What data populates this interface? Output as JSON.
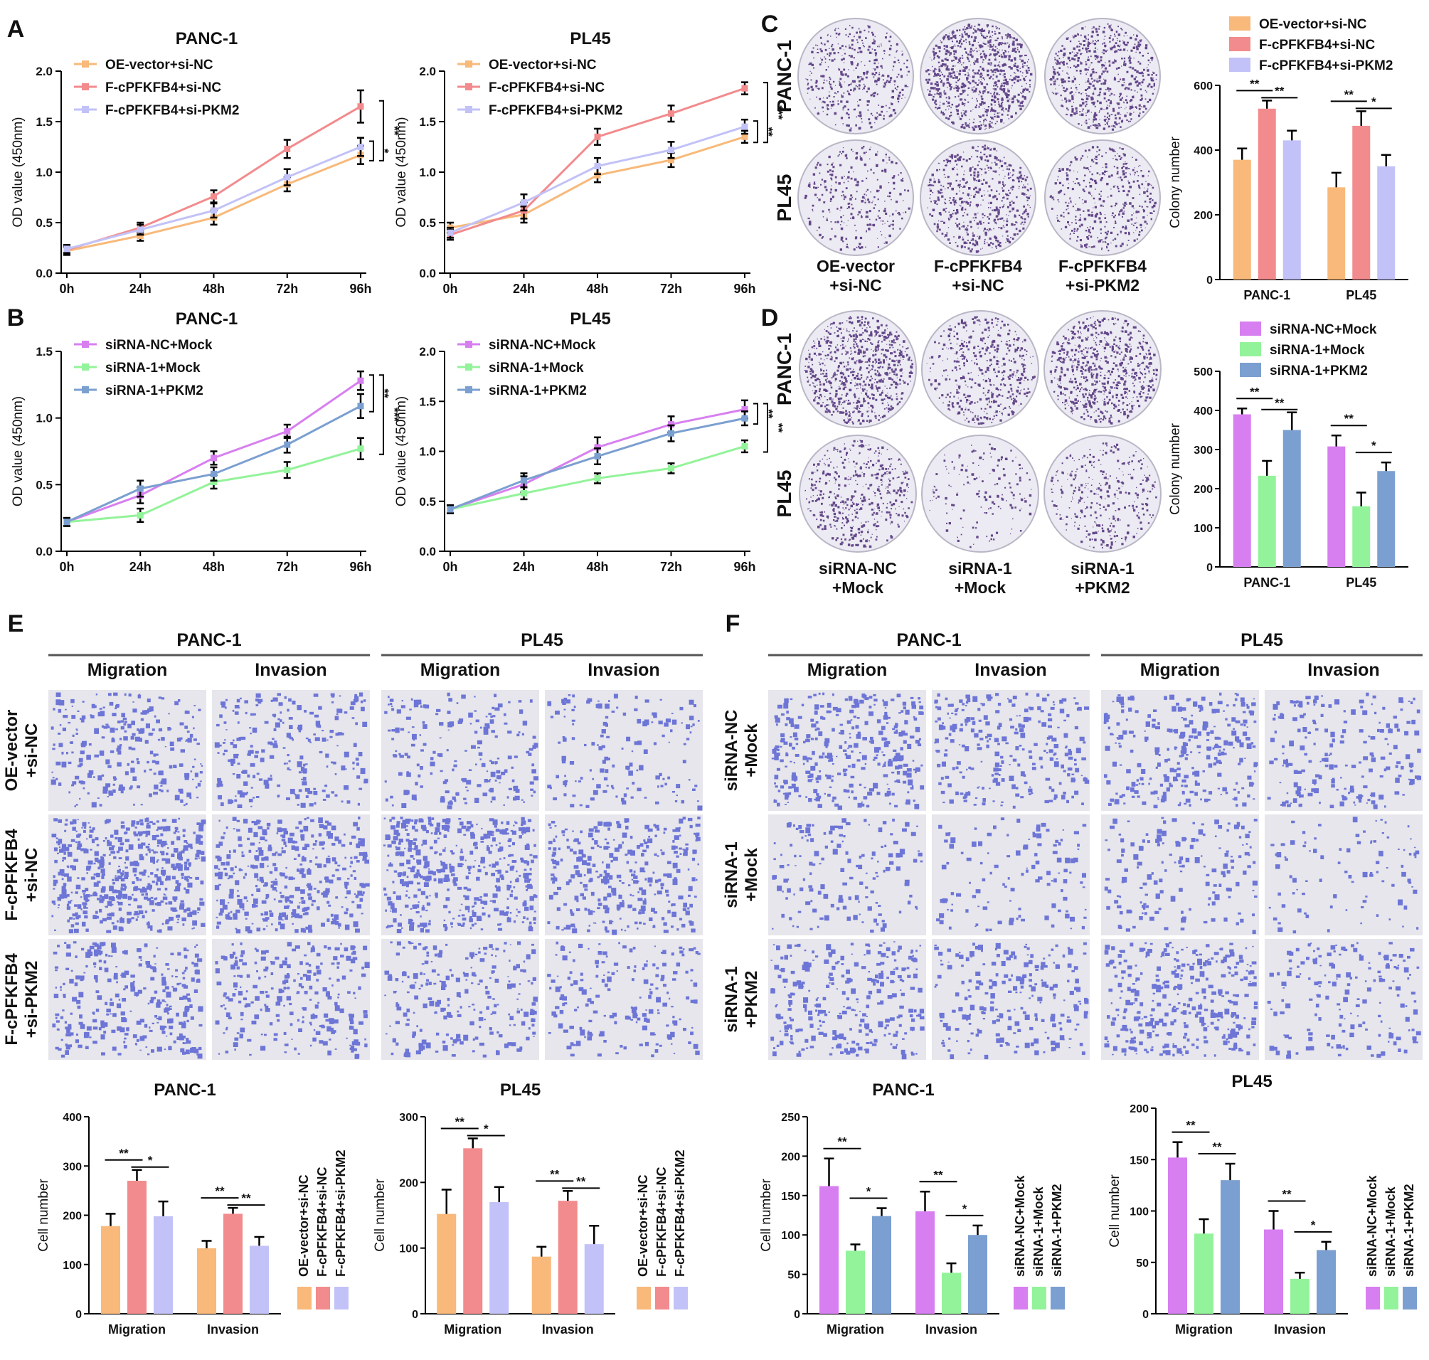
{
  "panel_labels": [
    "A",
    "B",
    "C",
    "D",
    "E",
    "F"
  ],
  "colors": {
    "oe_vector": "#f8b97a",
    "f_cpfkfb4": "#f28b8d",
    "f_sipkm2": "#c2c2f8",
    "nc_mock": "#d77ff0",
    "si1_mock": "#93f39a",
    "si1_pkm2": "#7b9fd0",
    "colony_dot": "#4b2a78",
    "colony_bg": "#eceaf2",
    "cell_dot": "#4a55cf",
    "cell_bg": "#e6e6ec"
  },
  "chart_data": [
    {
      "id": "A1",
      "type": "line",
      "title": "PANC-1",
      "x": [
        "0h",
        "24h",
        "48h",
        "72h",
        "96h"
      ],
      "ylabel": "OD value (450nm)",
      "ylim": [
        0,
        2.0
      ],
      "yticks": [
        "0.0",
        "0.5",
        "1.0",
        "1.5",
        "2.0"
      ],
      "series": [
        {
          "name": "OE-vector+si-NC",
          "color": "#f8b97a",
          "values": [
            0.22,
            0.37,
            0.55,
            0.88,
            1.17
          ],
          "errors": [
            0.04,
            0.05,
            0.07,
            0.07,
            0.09
          ]
        },
        {
          "name": "F-cPFKFB4+si-NC",
          "color": "#f28b8d",
          "values": [
            0.23,
            0.45,
            0.76,
            1.23,
            1.65
          ],
          "errors": [
            0.04,
            0.05,
            0.06,
            0.09,
            0.16
          ]
        },
        {
          "name": "F-cPFKFB4+si-PKM2",
          "color": "#c2c2f8",
          "values": [
            0.24,
            0.43,
            0.62,
            0.95,
            1.25
          ],
          "errors": [
            0.04,
            0.05,
            0.07,
            0.08,
            0.09
          ]
        }
      ],
      "significance": [
        "*",
        "**"
      ]
    },
    {
      "id": "A2",
      "type": "line",
      "title": "PL45",
      "x": [
        "0h",
        "24h",
        "48h",
        "72h",
        "96h"
      ],
      "ylabel": "OD value (450nm)",
      "ylim": [
        0,
        2.0
      ],
      "yticks": [
        "0.0",
        "0.5",
        "1.0",
        "1.5",
        "2.0"
      ],
      "series": [
        {
          "name": "OE-vector+si-NC",
          "color": "#f8b97a",
          "values": [
            0.45,
            0.58,
            0.97,
            1.12,
            1.35
          ],
          "errors": [
            0.05,
            0.08,
            0.07,
            0.07,
            0.06
          ]
        },
        {
          "name": "F-cPFKFB4+si-NC",
          "color": "#f28b8d",
          "values": [
            0.38,
            0.62,
            1.35,
            1.58,
            1.83
          ],
          "errors": [
            0.05,
            0.08,
            0.08,
            0.08,
            0.06
          ]
        },
        {
          "name": "F-cPFKFB4+si-PKM2",
          "color": "#c2c2f8",
          "values": [
            0.4,
            0.7,
            1.06,
            1.22,
            1.45
          ],
          "errors": [
            0.05,
            0.08,
            0.08,
            0.08,
            0.07
          ]
        }
      ],
      "significance": [
        "**",
        "***"
      ]
    },
    {
      "id": "B1",
      "type": "line",
      "title": "PANC-1",
      "x": [
        "0h",
        "24h",
        "48h",
        "72h",
        "96h"
      ],
      "ylabel": "OD value (450nm)",
      "ylim": [
        0,
        1.5
      ],
      "yticks": [
        "0.0",
        "0.5",
        "1.0",
        "1.5"
      ],
      "series": [
        {
          "name": "siRNA-NC+Mock",
          "color": "#d77ff0",
          "values": [
            0.22,
            0.42,
            0.7,
            0.9,
            1.28
          ],
          "errors": [
            0.03,
            0.06,
            0.05,
            0.05,
            0.07
          ]
        },
        {
          "name": "siRNA-1+Mock",
          "color": "#93f39a",
          "values": [
            0.22,
            0.27,
            0.52,
            0.61,
            0.77
          ],
          "errors": [
            0.03,
            0.05,
            0.05,
            0.06,
            0.08
          ]
        },
        {
          "name": "siRNA-1+PKM2",
          "color": "#7b9fd0",
          "values": [
            0.22,
            0.47,
            0.58,
            0.8,
            1.09
          ],
          "errors": [
            0.03,
            0.06,
            0.05,
            0.06,
            0.09
          ]
        }
      ],
      "significance": [
        "**",
        "***"
      ]
    },
    {
      "id": "B2",
      "type": "line",
      "title": "PL45",
      "x": [
        "0h",
        "24h",
        "48h",
        "72h",
        "96h"
      ],
      "ylabel": "OD value (450nm)",
      "ylim": [
        0,
        2.0
      ],
      "yticks": [
        "0.0",
        "0.5",
        "1.0",
        "1.5",
        "2.0"
      ],
      "series": [
        {
          "name": "siRNA-NC+Mock",
          "color": "#d77ff0",
          "values": [
            0.42,
            0.67,
            1.04,
            1.27,
            1.42
          ],
          "errors": [
            0.04,
            0.08,
            0.1,
            0.08,
            0.09
          ]
        },
        {
          "name": "siRNA-1+Mock",
          "color": "#93f39a",
          "values": [
            0.42,
            0.58,
            0.73,
            0.83,
            1.05
          ],
          "errors": [
            0.04,
            0.06,
            0.05,
            0.05,
            0.06
          ]
        },
        {
          "name": "siRNA-1+PKM2",
          "color": "#7b9fd0",
          "values": [
            0.42,
            0.71,
            0.95,
            1.18,
            1.33
          ],
          "errors": [
            0.04,
            0.07,
            0.08,
            0.08,
            0.07
          ]
        }
      ],
      "significance": [
        "**",
        "**"
      ]
    },
    {
      "id": "C_bar",
      "type": "bar",
      "title": "",
      "categories": [
        "PANC-1",
        "PL45"
      ],
      "ylabel": "Colony number",
      "ylim": [
        0,
        600
      ],
      "yticks": [
        "0",
        "200",
        "400",
        "600"
      ],
      "series": [
        {
          "name": "OE-vector+si-NC",
          "color": "#f8b97a",
          "values": [
            370,
            285
          ],
          "errors": [
            35,
            45
          ]
        },
        {
          "name": "F-cPFKFB4+si-NC",
          "color": "#f28b8d",
          "values": [
            528,
            475
          ],
          "errors": [
            25,
            45
          ]
        },
        {
          "name": "F-cPFKFB4+si-PKM2",
          "color": "#c2c2f8",
          "values": [
            430,
            350
          ],
          "errors": [
            30,
            35
          ]
        }
      ],
      "significance": [
        [
          "**",
          "**"
        ],
        [
          "**",
          "*"
        ]
      ]
    },
    {
      "id": "D_bar",
      "type": "bar",
      "title": "",
      "categories": [
        "PANC-1",
        "PL45"
      ],
      "ylabel": "Colony number",
      "ylim": [
        0,
        500
      ],
      "yticks": [
        "0",
        "100",
        "200",
        "300",
        "400",
        "500"
      ],
      "series": [
        {
          "name": "siRNA-NC+Mock",
          "color": "#d77ff0",
          "values": [
            390,
            308
          ],
          "errors": [
            15,
            28
          ]
        },
        {
          "name": "siRNA-1+Mock",
          "color": "#93f39a",
          "values": [
            233,
            155
          ],
          "errors": [
            38,
            35
          ]
        },
        {
          "name": "siRNA-1+PKM2",
          "color": "#7b9fd0",
          "values": [
            350,
            245
          ],
          "errors": [
            45,
            22
          ]
        }
      ],
      "significance": [
        [
          "**",
          "**"
        ],
        [
          "**",
          "*"
        ]
      ]
    },
    {
      "id": "E1",
      "type": "bar",
      "title": "PANC-1",
      "categories": [
        "Migration",
        "Invasion"
      ],
      "ylabel": "Cell number",
      "ylim": [
        0,
        400
      ],
      "yticks": [
        "0",
        "100",
        "200",
        "300",
        "400"
      ],
      "series": [
        {
          "name": "OE-vector+si-NC",
          "color": "#f8b97a",
          "values": [
            178,
            133
          ],
          "errors": [
            25,
            15
          ]
        },
        {
          "name": "F-cPFKFB4+si-NC",
          "color": "#f28b8d",
          "values": [
            270,
            203
          ],
          "errors": [
            22,
            12
          ]
        },
        {
          "name": "F-cPFKFB4+si-PKM2",
          "color": "#c2c2f8",
          "values": [
            198,
            138
          ],
          "errors": [
            30,
            18
          ]
        }
      ],
      "significance": [
        [
          "**",
          "*"
        ],
        [
          "**",
          "**"
        ]
      ]
    },
    {
      "id": "E2",
      "type": "bar",
      "title": "PL45",
      "categories": [
        "Migration",
        "Invasion"
      ],
      "ylabel": "Cell number",
      "ylim": [
        0,
        300
      ],
      "yticks": [
        "0",
        "100",
        "200",
        "300"
      ],
      "series": [
        {
          "name": "OE-vector+si-NC",
          "color": "#f8b97a",
          "values": [
            152,
            87
          ],
          "errors": [
            37,
            15
          ]
        },
        {
          "name": "F-cPFKFB4+si-NC",
          "color": "#f28b8d",
          "values": [
            252,
            172
          ],
          "errors": [
            15,
            15
          ]
        },
        {
          "name": "F-cPFKFB4+si-PKM2",
          "color": "#c2c2f8",
          "values": [
            170,
            106
          ],
          "errors": [
            23,
            28
          ]
        }
      ],
      "significance": [
        [
          "**",
          "*"
        ],
        [
          "**",
          "**"
        ]
      ]
    },
    {
      "id": "F1",
      "type": "bar",
      "title": "PANC-1",
      "categories": [
        "Migration",
        "Invasion"
      ],
      "ylabel": "Cell number",
      "ylim": [
        0,
        250
      ],
      "yticks": [
        "0",
        "50",
        "100",
        "150",
        "200",
        "250"
      ],
      "series": [
        {
          "name": "siRNA-NC+Mock",
          "color": "#d77ff0",
          "values": [
            162,
            130
          ],
          "errors": [
            35,
            25
          ]
        },
        {
          "name": "siRNA-1+Mock",
          "color": "#93f39a",
          "values": [
            80,
            52
          ],
          "errors": [
            8,
            12
          ]
        },
        {
          "name": "siRNA-1+PKM2",
          "color": "#7b9fd0",
          "values": [
            124,
            100
          ],
          "errors": [
            10,
            12
          ]
        }
      ],
      "significance": [
        [
          "**",
          "*"
        ],
        [
          "**",
          "*"
        ]
      ]
    },
    {
      "id": "F2",
      "type": "bar",
      "title": "PL45",
      "categories": [
        "Migration",
        "Invasion"
      ],
      "ylabel": "Cell number",
      "ylim": [
        0,
        200
      ],
      "yticks": [
        "0",
        "50",
        "100",
        "150",
        "200"
      ],
      "series": [
        {
          "name": "siRNA-NC+Mock",
          "color": "#d77ff0",
          "values": [
            152,
            82
          ],
          "errors": [
            15,
            18
          ]
        },
        {
          "name": "siRNA-1+Mock",
          "color": "#93f39a",
          "values": [
            78,
            34
          ],
          "errors": [
            14,
            6
          ]
        },
        {
          "name": "siRNA-1+PKM2",
          "color": "#7b9fd0",
          "values": [
            130,
            62
          ],
          "errors": [
            16,
            8
          ]
        }
      ],
      "significance": [
        [
          "**",
          "**"
        ],
        [
          "**",
          "*"
        ]
      ]
    }
  ],
  "colony_panels": [
    {
      "id": "C",
      "row_labels": [
        "PANC-1",
        "PL45"
      ],
      "col_labels": [
        [
          "OE-vector",
          "+si-NC"
        ],
        [
          "F-cPFKFB4",
          "+si-NC"
        ],
        [
          "F-cPFKFB4",
          "+si-PKM2"
        ]
      ],
      "densities": [
        [
          420,
          900,
          640
        ],
        [
          300,
          560,
          420
        ]
      ]
    },
    {
      "id": "D",
      "row_labels": [
        "PANC-1",
        "PL45"
      ],
      "col_labels": [
        [
          "siRNA-NC",
          "+Mock"
        ],
        [
          "siRNA-1",
          "+Mock"
        ],
        [
          "siRNA-1",
          "+PKM2"
        ]
      ],
      "densities": [
        [
          780,
          470,
          720
        ],
        [
          460,
          160,
          330
        ]
      ]
    }
  ],
  "transwell_panels": [
    {
      "id": "E",
      "groups": [
        "PANC-1",
        "PL45"
      ],
      "assays": [
        "Migration",
        "Invasion",
        "Migration",
        "Invasion"
      ],
      "row_labels": [
        [
          "OE-vector",
          "+si-NC"
        ],
        [
          "F-cPFKFB4",
          "+si-NC"
        ],
        [
          "F-cPFKFB4",
          "+si-PKM2"
        ]
      ],
      "densities": [
        [
          260,
          240,
          200,
          150
        ],
        [
          520,
          380,
          450,
          320
        ],
        [
          300,
          260,
          230,
          180
        ]
      ]
    },
    {
      "id": "F",
      "groups": [
        "PANC-1",
        "PL45"
      ],
      "assays": [
        "Migration",
        "Invasion",
        "Migration",
        "Invasion"
      ],
      "row_labels": [
        [
          "siRNA-NC",
          "+Mock"
        ],
        [
          "siRNA-1",
          "+Mock"
        ],
        [
          "siRNA-1",
          "+PKM2"
        ]
      ],
      "densities": [
        [
          340,
          260,
          280,
          200
        ],
        [
          150,
          120,
          160,
          90
        ],
        [
          280,
          220,
          330,
          170
        ]
      ]
    }
  ]
}
